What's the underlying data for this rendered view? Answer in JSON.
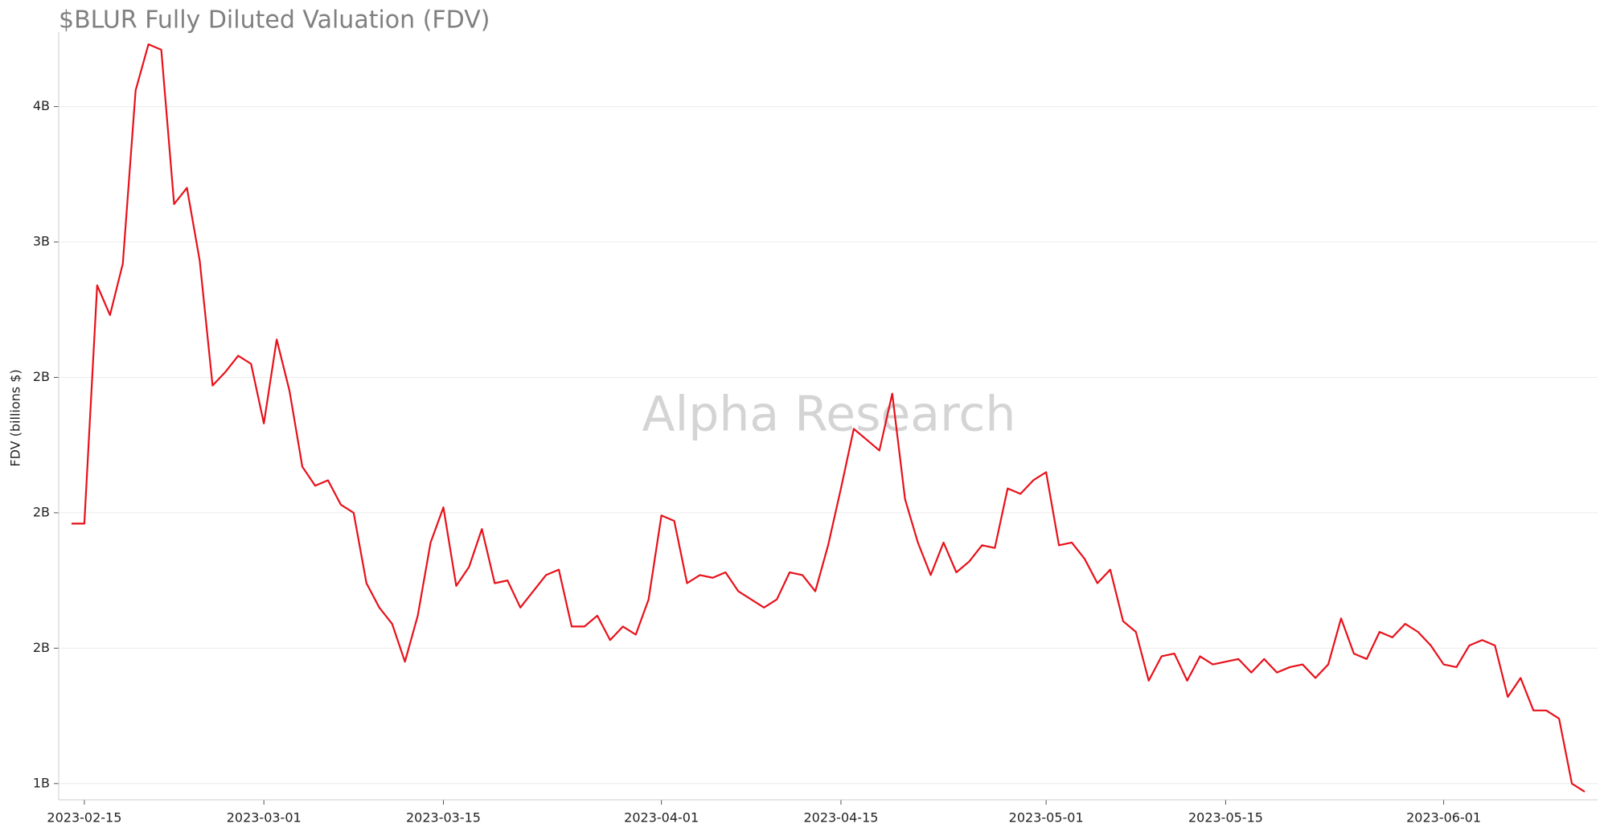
{
  "chart_data": {
    "type": "line",
    "title": "$BLUR Fully Diluted Valuation (FDV)",
    "ylabel": "FDV (billions $)",
    "watermark": "Alpha Research",
    "x": [
      "2023-02-14",
      "2023-02-15",
      "2023-02-16",
      "2023-02-17",
      "2023-02-18",
      "2023-02-19",
      "2023-02-20",
      "2023-02-21",
      "2023-02-22",
      "2023-02-23",
      "2023-02-24",
      "2023-02-25",
      "2023-02-26",
      "2023-02-27",
      "2023-02-28",
      "2023-03-01",
      "2023-03-02",
      "2023-03-03",
      "2023-03-04",
      "2023-03-05",
      "2023-03-06",
      "2023-03-07",
      "2023-03-08",
      "2023-03-09",
      "2023-03-10",
      "2023-03-11",
      "2023-03-12",
      "2023-03-13",
      "2023-03-14",
      "2023-03-15",
      "2023-03-16",
      "2023-03-17",
      "2023-03-18",
      "2023-03-19",
      "2023-03-20",
      "2023-03-21",
      "2023-03-22",
      "2023-03-23",
      "2023-03-24",
      "2023-03-25",
      "2023-03-26",
      "2023-03-27",
      "2023-03-28",
      "2023-03-29",
      "2023-03-30",
      "2023-03-31",
      "2023-04-01",
      "2023-04-02",
      "2023-04-03",
      "2023-04-04",
      "2023-04-05",
      "2023-04-06",
      "2023-04-07",
      "2023-04-08",
      "2023-04-09",
      "2023-04-10",
      "2023-04-11",
      "2023-04-12",
      "2023-04-13",
      "2023-04-14",
      "2023-04-15",
      "2023-04-16",
      "2023-04-17",
      "2023-04-18",
      "2023-04-19",
      "2023-04-20",
      "2023-04-21",
      "2023-04-22",
      "2023-04-23",
      "2023-04-24",
      "2023-04-25",
      "2023-04-26",
      "2023-04-27",
      "2023-04-28",
      "2023-04-29",
      "2023-04-30",
      "2023-05-01",
      "2023-05-02",
      "2023-05-03",
      "2023-05-04",
      "2023-05-05",
      "2023-05-06",
      "2023-05-07",
      "2023-05-08",
      "2023-05-09",
      "2023-05-10",
      "2023-05-11",
      "2023-05-12",
      "2023-05-13",
      "2023-05-14",
      "2023-05-15",
      "2023-05-16",
      "2023-05-17",
      "2023-05-18",
      "2023-05-19",
      "2023-05-20",
      "2023-05-21",
      "2023-05-22",
      "2023-05-23",
      "2023-05-24",
      "2023-05-25",
      "2023-05-26",
      "2023-05-27",
      "2023-05-28",
      "2023-05-29",
      "2023-05-30",
      "2023-05-31",
      "2023-06-01",
      "2023-06-02",
      "2023-06-03",
      "2023-06-04",
      "2023-06-05",
      "2023-06-06",
      "2023-06-07",
      "2023-06-08",
      "2023-06-09",
      "2023-06-10",
      "2023-06-11",
      "2023-06-12"
    ],
    "series": [
      {
        "name": "FDV",
        "color": "#e8101a",
        "values": [
          1.96,
          1.96,
          2.84,
          2.73,
          2.92,
          3.56,
          3.73,
          3.71,
          3.14,
          3.2,
          2.93,
          2.47,
          2.52,
          2.58,
          2.55,
          2.33,
          2.64,
          2.45,
          2.17,
          2.1,
          2.12,
          2.03,
          2.0,
          1.74,
          1.65,
          1.59,
          1.45,
          1.62,
          1.89,
          2.02,
          1.73,
          1.8,
          1.94,
          1.74,
          1.75,
          1.65,
          1.71,
          1.77,
          1.79,
          1.58,
          1.58,
          1.62,
          1.53,
          1.58,
          1.55,
          1.68,
          1.99,
          1.97,
          1.74,
          1.77,
          1.76,
          1.78,
          1.71,
          1.68,
          1.65,
          1.68,
          1.78,
          1.77,
          1.71,
          1.88,
          2.09,
          2.31,
          2.27,
          2.23,
          2.44,
          2.05,
          1.89,
          1.77,
          1.89,
          1.78,
          1.82,
          1.88,
          1.87,
          2.09,
          2.07,
          2.12,
          2.15,
          1.88,
          1.89,
          1.83,
          1.74,
          1.79,
          1.6,
          1.56,
          1.38,
          1.47,
          1.48,
          1.38,
          1.47,
          1.44,
          1.45,
          1.46,
          1.41,
          1.46,
          1.41,
          1.43,
          1.44,
          1.39,
          1.44,
          1.61,
          1.48,
          1.46,
          1.56,
          1.54,
          1.59,
          1.56,
          1.51,
          1.44,
          1.43,
          1.51,
          1.53,
          1.51,
          1.32,
          1.39,
          1.27,
          1.27,
          1.24,
          1.0,
          0.97
        ]
      }
    ],
    "xlim": [
      "2023-02-13",
      "2023-06-13"
    ],
    "xticks": [
      "2023-02-15",
      "2023-03-01",
      "2023-03-15",
      "2023-04-01",
      "2023-04-15",
      "2023-05-01",
      "2023-05-15",
      "2023-06-01"
    ],
    "ylim": [
      0.94,
      3.76
    ],
    "yticks": [
      {
        "value": 1.0,
        "label": "1B"
      },
      {
        "value": 1.5,
        "label": "2B"
      },
      {
        "value": 2.0,
        "label": "2B"
      },
      {
        "value": 2.5,
        "label": "2B"
      },
      {
        "value": 3.0,
        "label": "3B"
      },
      {
        "value": 3.5,
        "label": "4B"
      }
    ],
    "grid": true
  }
}
